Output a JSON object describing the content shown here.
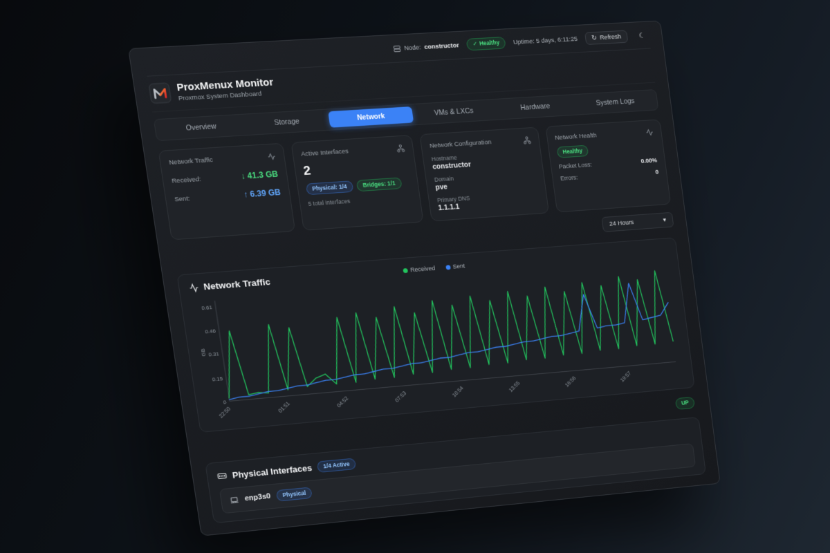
{
  "colors": {
    "accent_blue": "#3b82f6",
    "success_green": "#22c55e",
    "logo_orange": "#f97316"
  },
  "topbar": {
    "node_label": "Node:",
    "node_value": "constructor",
    "check_icon": "✓",
    "health_status": "Healthy",
    "uptime": "Uptime: 5 days, 6:11:25",
    "refresh_icon": "↻",
    "refresh_label": "Refresh",
    "moon_icon": "☾"
  },
  "header": {
    "title": "ProxMenux Monitor",
    "subtitle": "Proxmox System Dashboard"
  },
  "tabs": [
    {
      "label": "Overview"
    },
    {
      "label": "Storage"
    },
    {
      "label": "Network"
    },
    {
      "label": "VMs & LXCs"
    },
    {
      "label": "Hardware"
    },
    {
      "label": "System Logs"
    }
  ],
  "active_tab": "Network",
  "cards": {
    "traffic": {
      "title": "Network Traffic",
      "received_label": "Received:",
      "received_value": "↓ 41.3 GB",
      "sent_label": "Sent:",
      "sent_value": "↑ 6.39 GB"
    },
    "interfaces": {
      "title": "Active Interfaces",
      "count": "2",
      "physical_badge": "Physical: 1/4",
      "bridges_badge": "Bridges: 1/1",
      "total": "5 total interfaces"
    },
    "config": {
      "title": "Network Configuration",
      "hostname_label": "Hostname",
      "hostname": "constructor",
      "domain_label": "Domain",
      "domain": "pve",
      "dns_label": "Primary DNS",
      "dns": "1.1.1.1"
    },
    "health": {
      "title": "Network Health",
      "status": "Healthy",
      "packet_loss_label": "Packet Loss:",
      "packet_loss": "0.00%",
      "errors_label": "Errors:",
      "errors": "0"
    }
  },
  "time_range": {
    "selected": "24 Hours",
    "chevron": "▾"
  },
  "chart_data": {
    "type": "line",
    "title": "Network Traffic",
    "ylabel": "GB",
    "ylim": [
      0,
      0.65
    ],
    "y_ticks": [
      0,
      0.15,
      0.31,
      0.46,
      0.61
    ],
    "x_tick_indices": [
      0,
      6,
      12,
      18,
      24,
      30,
      36,
      42
    ],
    "x_tick_labels": [
      "22:50",
      "01:51",
      "04:52",
      "07:53",
      "10:54",
      "13:55",
      "16:56",
      "19:57"
    ],
    "legend_position": "top-center",
    "grid": false,
    "series": [
      {
        "name": "Received",
        "color": "#22c55e",
        "values": [
          0.02,
          0.45,
          0.03,
          0.04,
          0.03,
          0.47,
          0.04,
          0.44,
          0.05,
          0.1,
          0.12,
          0.05,
          0.48,
          0.05,
          0.5,
          0.06,
          0.46,
          0.06,
          0.52,
          0.07,
          0.47,
          0.07,
          0.54,
          0.08,
          0.5,
          0.08,
          0.55,
          0.09,
          0.51,
          0.09,
          0.56,
          0.1,
          0.52,
          0.1,
          0.57,
          0.11,
          0.53,
          0.11,
          0.58,
          0.12,
          0.55,
          0.12,
          0.6,
          0.13,
          0.57,
          0.13,
          0.62,
          0.14
        ]
      },
      {
        "name": "Sent",
        "color": "#3b82f6",
        "values": [
          0.01,
          0.02,
          0.02,
          0.03,
          0.04,
          0.04,
          0.05,
          0.06,
          0.06,
          0.07,
          0.08,
          0.08,
          0.09,
          0.1,
          0.1,
          0.11,
          0.12,
          0.12,
          0.13,
          0.14,
          0.14,
          0.15,
          0.16,
          0.16,
          0.17,
          0.18,
          0.18,
          0.19,
          0.2,
          0.2,
          0.21,
          0.22,
          0.22,
          0.23,
          0.24,
          0.24,
          0.25,
          0.26,
          0.5,
          0.27,
          0.28,
          0.28,
          0.29,
          0.55,
          0.3,
          0.31,
          0.32,
          0.4
        ]
      }
    ]
  },
  "bridge_row": {
    "status": "UP"
  },
  "physical": {
    "title": "Physical Interfaces",
    "active_badge": "1/4 Active",
    "interfaces": [
      {
        "name": "enp3s0",
        "type": "Physical"
      }
    ]
  }
}
